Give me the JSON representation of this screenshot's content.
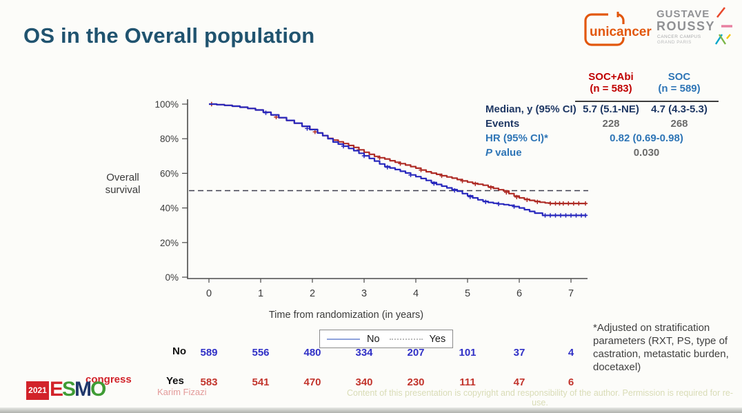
{
  "slide": {
    "title": "OS in the Overall population"
  },
  "logos": {
    "unicancer": {
      "text": "unicancer",
      "color": "#e2570d"
    },
    "gustave_roussy": {
      "line1": "GUSTAVE",
      "line2": "ROUSSY",
      "sub1": "CANCER CAMPUS",
      "sub2": "GRAND PARIS",
      "text_color": "#909194"
    },
    "esmo": {
      "year": "2021",
      "congress": "congress",
      "letters": [
        {
          "ch": "E",
          "color": "#d2232a"
        },
        {
          "ch": "S",
          "color": "#3f9c35"
        },
        {
          "ch": "M",
          "color": "#20386b"
        },
        {
          "ch": "O",
          "color": "#3f9c35"
        }
      ]
    }
  },
  "stats_table": {
    "columns": [
      {
        "title": "SOC+Abi",
        "n": "(n = 583)",
        "color": "#c00000"
      },
      {
        "title": "SOC",
        "n": "(n = 589)",
        "color": "#2e75b6"
      }
    ],
    "rows": {
      "median": {
        "label": "Median, y (95% CI)",
        "soc_abi": "5.7 (5.1-NE)",
        "soc": "4.7 (4.3-5.3)"
      },
      "events": {
        "label": "Events",
        "soc_abi": "228",
        "soc": "268"
      },
      "hr": {
        "label": "HR (95% CI)*",
        "value": "0.82 (0.69-0.98)"
      },
      "pvalue": {
        "label_italic": "P",
        "label_rest": " value",
        "value": "0.030"
      }
    }
  },
  "chart_data": {
    "type": "line",
    "subtype": "kaplan-meier",
    "title": "",
    "ylabel": "Overall survival",
    "xlabel": "Time from randomization (in years)",
    "xlim": [
      0,
      7.3
    ],
    "ylim": [
      0,
      100
    ],
    "grid": false,
    "xticks": [
      0,
      1,
      2,
      3,
      4,
      5,
      6,
      7
    ],
    "ytick_values": [
      100,
      80,
      60,
      40,
      20,
      0
    ],
    "ytick_labels": [
      "100%",
      "80%",
      "60%",
      "40%",
      "20%",
      "0%"
    ],
    "reference_line": {
      "y_pct": 50,
      "style": "dashed",
      "color": "#3d3d4d"
    },
    "series": [
      {
        "name": "Yes (SOC+Abi)",
        "color": "#ae2b25",
        "median_years": 5.7,
        "points": [
          [
            0,
            100
          ],
          [
            0.15,
            99.7
          ],
          [
            0.3,
            99.3
          ],
          [
            0.45,
            98.8
          ],
          [
            0.6,
            98.2
          ],
          [
            0.75,
            97.5
          ],
          [
            0.9,
            96.6
          ],
          [
            1.05,
            95.3
          ],
          [
            1.2,
            93.8
          ],
          [
            1.35,
            92.2
          ],
          [
            1.5,
            90.6
          ],
          [
            1.65,
            89.0
          ],
          [
            1.8,
            87.2
          ],
          [
            1.95,
            85.3
          ],
          [
            2.1,
            83.3
          ],
          [
            2.2,
            81.8
          ],
          [
            2.3,
            80.2
          ],
          [
            2.4,
            79.2
          ],
          [
            2.5,
            78.2
          ],
          [
            2.6,
            77.2
          ],
          [
            2.7,
            76.1
          ],
          [
            2.8,
            75.0
          ],
          [
            2.9,
            73.6
          ],
          [
            3.0,
            72.2
          ],
          [
            3.1,
            71.0
          ],
          [
            3.2,
            69.8
          ],
          [
            3.3,
            69.0
          ],
          [
            3.4,
            68.3
          ],
          [
            3.5,
            67.3
          ],
          [
            3.6,
            66.4
          ],
          [
            3.7,
            65.6
          ],
          [
            3.8,
            64.8
          ],
          [
            3.9,
            63.9
          ],
          [
            4.0,
            63.0
          ],
          [
            4.1,
            61.9
          ],
          [
            4.2,
            60.9
          ],
          [
            4.3,
            60.1
          ],
          [
            4.4,
            59.4
          ],
          [
            4.5,
            58.6
          ],
          [
            4.6,
            57.9
          ],
          [
            4.7,
            57.2
          ],
          [
            4.8,
            56.4
          ],
          [
            4.9,
            55.6
          ],
          [
            5.0,
            54.9
          ],
          [
            5.1,
            54.2
          ],
          [
            5.2,
            53.7
          ],
          [
            5.3,
            53.1
          ],
          [
            5.4,
            52.2
          ],
          [
            5.5,
            51.3
          ],
          [
            5.6,
            50.5
          ],
          [
            5.7,
            49.8
          ],
          [
            5.8,
            48.3
          ],
          [
            5.9,
            46.9
          ],
          [
            6.0,
            45.8
          ],
          [
            6.1,
            45.0
          ],
          [
            6.2,
            44.4
          ],
          [
            6.3,
            43.8
          ],
          [
            6.4,
            43.3
          ],
          [
            6.5,
            42.9
          ],
          [
            6.6,
            42.6
          ],
          [
            7.3,
            42.6
          ]
        ],
        "censor_marks": [
          [
            0.05,
            100
          ],
          [
            1.3,
            92.5
          ],
          [
            2.05,
            84
          ],
          [
            2.5,
            78.2
          ],
          [
            2.9,
            73.6
          ],
          [
            3.3,
            69
          ],
          [
            3.7,
            65.6
          ],
          [
            4.1,
            61.9
          ],
          [
            4.5,
            58.6
          ],
          [
            4.9,
            55.6
          ],
          [
            5.15,
            53.9
          ],
          [
            5.45,
            51.8
          ],
          [
            5.75,
            49
          ],
          [
            5.95,
            46.3
          ],
          [
            6.15,
            44.7
          ],
          [
            6.35,
            43.5
          ],
          [
            6.6,
            42.6
          ],
          [
            6.7,
            42.6
          ],
          [
            6.78,
            42.6
          ],
          [
            6.85,
            42.6
          ],
          [
            6.95,
            42.6
          ],
          [
            7.05,
            42.6
          ],
          [
            7.15,
            42.6
          ],
          [
            7.28,
            42.6
          ]
        ]
      },
      {
        "name": "No (SOC)",
        "color": "#2828bd",
        "median_years": 4.7,
        "points": [
          [
            0,
            100
          ],
          [
            0.15,
            99.7
          ],
          [
            0.3,
            99.3
          ],
          [
            0.45,
            98.8
          ],
          [
            0.6,
            98.2
          ],
          [
            0.75,
            97.5
          ],
          [
            0.9,
            96.6
          ],
          [
            1.05,
            95.3
          ],
          [
            1.2,
            93.8
          ],
          [
            1.35,
            92.2
          ],
          [
            1.5,
            90.6
          ],
          [
            1.65,
            89.0
          ],
          [
            1.8,
            87.2
          ],
          [
            1.95,
            85.3
          ],
          [
            2.1,
            83.3
          ],
          [
            2.2,
            81.8
          ],
          [
            2.3,
            80.0
          ],
          [
            2.4,
            78.1
          ],
          [
            2.5,
            76.9
          ],
          [
            2.6,
            75.7
          ],
          [
            2.7,
            74.4
          ],
          [
            2.8,
            73.1
          ],
          [
            2.9,
            71.6
          ],
          [
            3.0,
            70.1
          ],
          [
            3.1,
            68.6
          ],
          [
            3.2,
            67.1
          ],
          [
            3.3,
            65.4
          ],
          [
            3.4,
            63.9
          ],
          [
            3.5,
            63.1
          ],
          [
            3.6,
            62.2
          ],
          [
            3.7,
            61.2
          ],
          [
            3.8,
            60.2
          ],
          [
            3.9,
            59.1
          ],
          [
            4.0,
            58.1
          ],
          [
            4.1,
            57.0
          ],
          [
            4.2,
            55.9
          ],
          [
            4.3,
            54.7
          ],
          [
            4.4,
            53.6
          ],
          [
            4.5,
            52.6
          ],
          [
            4.6,
            51.6
          ],
          [
            4.7,
            50.6
          ],
          [
            4.8,
            49.7
          ],
          [
            4.9,
            48.3
          ],
          [
            5.0,
            47.0
          ],
          [
            5.1,
            45.8
          ],
          [
            5.2,
            44.7
          ],
          [
            5.3,
            43.8
          ],
          [
            5.4,
            43.2
          ],
          [
            5.5,
            42.7
          ],
          [
            5.6,
            42.3
          ],
          [
            5.7,
            41.9
          ],
          [
            5.8,
            41.5
          ],
          [
            5.9,
            40.8
          ],
          [
            6.0,
            40.0
          ],
          [
            6.1,
            39.0
          ],
          [
            6.2,
            38.0
          ],
          [
            6.3,
            37.0
          ],
          [
            6.45,
            35.7
          ],
          [
            7.3,
            35.7
          ]
        ],
        "censor_marks": [
          [
            1.1,
            95
          ],
          [
            1.9,
            85.9
          ],
          [
            2.6,
            75.7
          ],
          [
            3.0,
            70.1
          ],
          [
            3.45,
            63.5
          ],
          [
            3.9,
            59.1
          ],
          [
            4.35,
            54.1
          ],
          [
            4.75,
            50.1
          ],
          [
            5.05,
            46.4
          ],
          [
            5.35,
            43.5
          ],
          [
            5.6,
            42.3
          ],
          [
            5.9,
            40.8
          ],
          [
            6.5,
            35.7
          ],
          [
            6.6,
            35.7
          ],
          [
            6.7,
            35.7
          ],
          [
            6.8,
            35.7
          ],
          [
            6.9,
            35.7
          ],
          [
            7.0,
            35.7
          ],
          [
            7.1,
            35.7
          ],
          [
            7.2,
            35.7
          ],
          [
            7.28,
            35.7
          ]
        ]
      }
    ]
  },
  "plot_legend": {
    "items": [
      {
        "label": "No",
        "line": "solid",
        "color": "#8ea2dc"
      },
      {
        "label": "Yes",
        "line": "dotted",
        "color": "#bcbcbc"
      }
    ]
  },
  "risk_table": {
    "rows": [
      {
        "label": "No",
        "color": "#3030c6",
        "values": [
          "589",
          "556",
          "480",
          "334",
          "207",
          "101",
          "37",
          "4"
        ]
      },
      {
        "label": "Yes",
        "color": "#c2342c",
        "values": [
          "583",
          "541",
          "470",
          "340",
          "230",
          "111",
          "47",
          "6"
        ]
      }
    ]
  },
  "footnote": "*Adjusted on stratification parameters (RXT, PS, type of castration, metastatic burden, docetaxel)",
  "credits": {
    "author": "Karim Fizazi",
    "copyright": "Content of this presentation is copyright and responsibility of the author. Permission is required for re-use."
  }
}
